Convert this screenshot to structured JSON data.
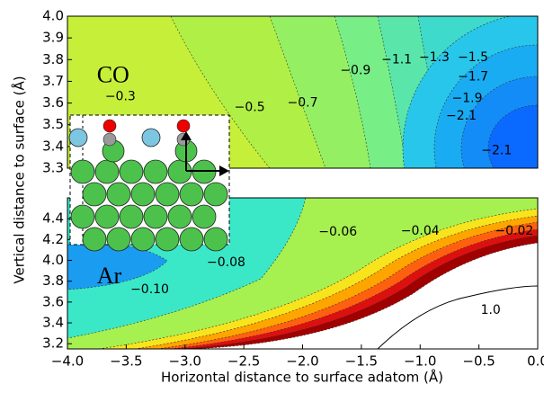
{
  "chart_data": [
    {
      "type": "contour",
      "title": "CO",
      "ylabel": "Vertical distance to surface (Å)",
      "xlim": [
        -4.0,
        0.0
      ],
      "ylim": [
        3.3,
        4.0
      ],
      "yticks": [
        {
          "value": 4.0,
          "label": "4.0"
        },
        3.9,
        3.8,
        3.7,
        3.6,
        3.5,
        3.4,
        3.3
      ],
      "contour_labels": [
        "−0.3",
        "−0.5",
        "−0.7",
        "−0.9",
        "−1.1",
        "−1.3",
        "−1.5",
        "−1.7",
        "−1.9",
        "−2.1",
        "−2.1"
      ]
    },
    {
      "type": "contour",
      "title": "Ar",
      "xlabel": "Horizontal distance to surface adatom (Å)",
      "xlim": [
        -4.0,
        0.0
      ],
      "ylim": [
        3.15,
        4.6
      ],
      "xticks": [
        {
          "value": -4.0,
          "label": "−4.0"
        },
        {
          "value": -3.5,
          "label": "−3.5"
        },
        {
          "value": -3.0,
          "label": "−3.0"
        },
        {
          "value": -2.5,
          "label": "−2.5"
        },
        {
          "value": -2.0,
          "label": "−2.0"
        },
        {
          "value": -1.5,
          "label": "−1.5"
        },
        {
          "value": -1.0,
          "label": "−1.0"
        },
        {
          "value": -0.5,
          "label": "−0.5"
        },
        {
          "value": 0.0,
          "label": "0.0"
        }
      ],
      "yticks": [
        4.4,
        4.2,
        {
          "value": 4.0,
          "label": "4.0"
        },
        3.8,
        3.6,
        3.4,
        3.2
      ],
      "contour_labels": [
        "−0.06",
        "−0.04",
        "−0.02",
        "−0.08",
        "−0.10",
        "1.0"
      ]
    }
  ]
}
